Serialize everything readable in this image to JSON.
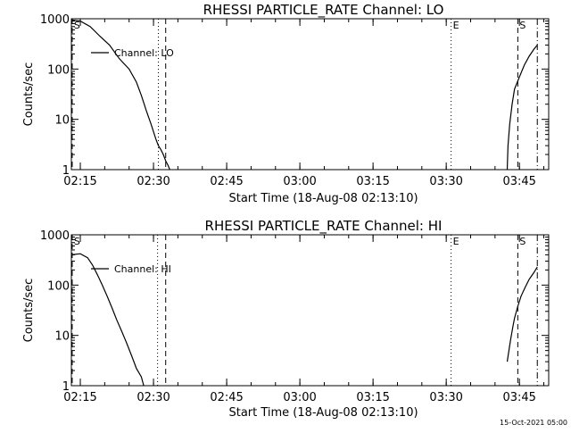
{
  "footer_text": "15-Oct-2021 05:00",
  "chart_data": [
    {
      "type": "line",
      "title": "RHESSI PARTICLE_RATE Channel: LO",
      "xlabel": "Start Time (18-Aug-08 02:13:10)",
      "ylabel": "Counts/sec",
      "y_scale": "log",
      "ylim": [
        1,
        1000
      ],
      "xlim": [
        "02:13:10",
        "03:51:00"
      ],
      "x_ticks": [
        "02:15",
        "02:30",
        "02:45",
        "03:00",
        "03:15",
        "03:30",
        "03:45"
      ],
      "y_ticks": [
        "1",
        "10",
        "100",
        "1000"
      ],
      "legend": "top-left",
      "series": [
        {
          "name": "Channel: LO",
          "x": [
            "02:13:10",
            "02:15:00",
            "02:17:00",
            "02:19:00",
            "02:21:00",
            "02:23:00",
            "02:25:00",
            "02:26:30",
            "02:27:30",
            "02:28:30",
            "02:29:30",
            "02:30:30",
            "02:31:00",
            "02:31:30",
            "02:32:00",
            "02:32:30",
            "02:33:00",
            "02:33:20"
          ],
          "y": [
            950,
            900,
            700,
            450,
            300,
            160,
            100,
            55,
            30,
            15,
            8,
            4,
            3,
            2.5,
            2,
            1.5,
            1.2,
            1
          ],
          "x2": [
            "03:42:30",
            "03:42:40",
            "03:43:00",
            "03:43:30",
            "03:44:00",
            "03:45:00",
            "03:46:00",
            "03:47:00",
            "03:48:00",
            "03:48:40"
          ],
          "y2": [
            1,
            3,
            8,
            20,
            40,
            70,
            120,
            180,
            250,
            300
          ]
        }
      ],
      "markers": [
        {
          "label": "S",
          "time": "02:13:20",
          "style": "dashed"
        },
        {
          "label": "",
          "time": "02:31:00",
          "style": "dotted"
        },
        {
          "label": "",
          "time": "02:32:30",
          "style": "dashed"
        },
        {
          "label": "E",
          "time": "03:31:00",
          "style": "dotted"
        },
        {
          "label": "S",
          "time": "03:44:40",
          "style": "dashed"
        },
        {
          "label": "",
          "time": "03:48:40",
          "style": "dashdot"
        }
      ]
    },
    {
      "type": "line",
      "title": "RHESSI PARTICLE_RATE Channel: HI",
      "xlabel": "Start Time (18-Aug-08 02:13:10)",
      "ylabel": "Counts/sec",
      "y_scale": "log",
      "ylim": [
        1,
        1000
      ],
      "xlim": [
        "02:13:10",
        "03:51:00"
      ],
      "x_ticks": [
        "02:15",
        "02:30",
        "02:45",
        "03:00",
        "03:15",
        "03:30",
        "03:45"
      ],
      "y_ticks": [
        "1",
        "10",
        "100",
        "1000"
      ],
      "legend": "top-left",
      "series": [
        {
          "name": "Channel: HI",
          "x": [
            "02:13:10",
            "02:15:00",
            "02:16:30",
            "02:17:30",
            "02:18:30",
            "02:19:30",
            "02:20:30",
            "02:21:30",
            "02:22:30",
            "02:23:30",
            "02:24:30",
            "02:25:30",
            "02:26:30",
            "02:27:30",
            "02:28:00"
          ],
          "y": [
            400,
            420,
            350,
            250,
            160,
            100,
            60,
            35,
            20,
            12,
            7,
            4,
            2.2,
            1.5,
            1
          ],
          "x2": [
            "03:42:30",
            "03:43:10",
            "03:43:40",
            "03:44:00",
            "03:44:40",
            "03:45:20",
            "03:46:10",
            "03:47:00",
            "03:48:00",
            "03:48:40"
          ],
          "y2": [
            3,
            8,
            15,
            22,
            38,
            60,
            90,
            130,
            180,
            230
          ]
        }
      ],
      "markers": [
        {
          "label": "S",
          "time": "02:13:20",
          "style": "dashed"
        },
        {
          "label": "",
          "time": "02:30:50",
          "style": "dotted"
        },
        {
          "label": "",
          "time": "02:32:30",
          "style": "dashed"
        },
        {
          "label": "E",
          "time": "03:31:00",
          "style": "dotted"
        },
        {
          "label": "S",
          "time": "03:44:40",
          "style": "dashed"
        },
        {
          "label": "",
          "time": "03:48:40",
          "style": "dashdot"
        }
      ]
    }
  ]
}
